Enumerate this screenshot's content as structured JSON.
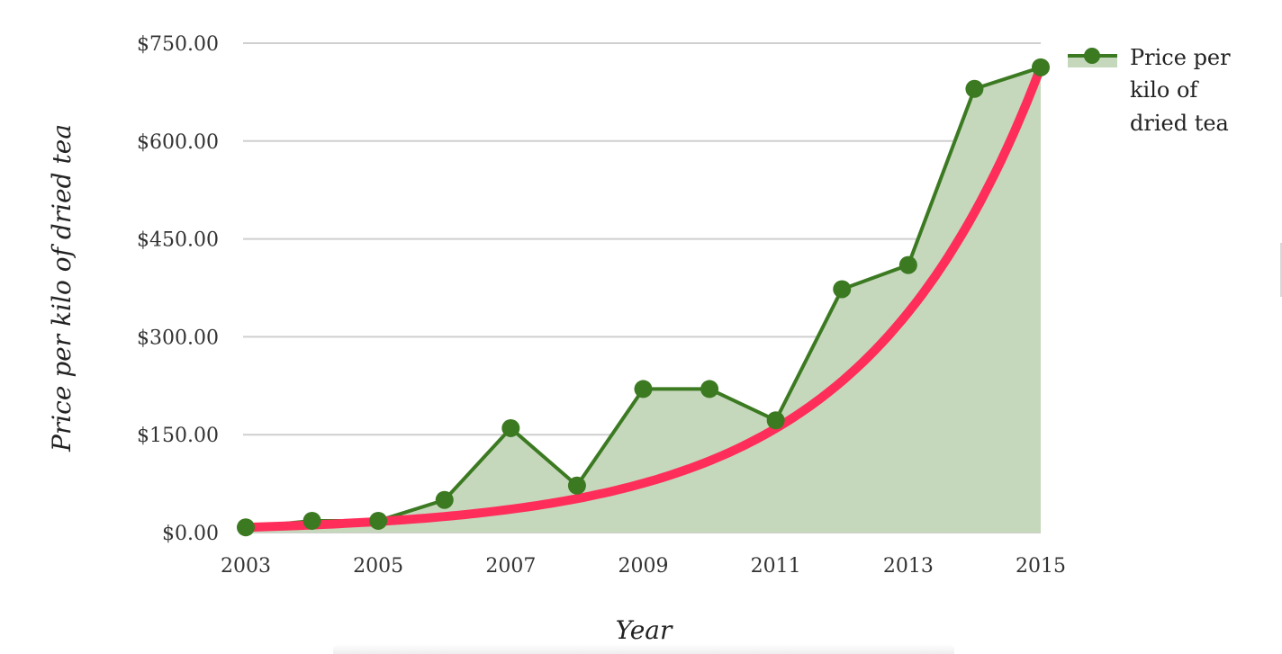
{
  "chart_data": {
    "type": "line",
    "xlabel": "Year",
    "ylabel": "Price per kilo of dried tea",
    "xlim": [
      2003,
      2015
    ],
    "ylim": [
      0,
      750
    ],
    "x_ticks": [
      "2003",
      "2005",
      "2007",
      "2009",
      "2011",
      "2013",
      "2015"
    ],
    "x_tick_values": [
      2003,
      2005,
      2007,
      2009,
      2011,
      2013,
      2015
    ],
    "y_ticks": [
      "$0.00",
      "$150.00",
      "$300.00",
      "$450.00",
      "$600.00",
      "$750.00"
    ],
    "y_tick_values": [
      0,
      150,
      300,
      450,
      600,
      750
    ],
    "grid": true,
    "legend_position": "top-right",
    "series": [
      {
        "name": "Price per kilo of dried tea",
        "style": "area-line-markers",
        "color": "#3c7a22",
        "fill_color": "#c5d8bc",
        "x": [
          2003,
          2004,
          2005,
          2006,
          2007,
          2008,
          2009,
          2010,
          2011,
          2012,
          2013,
          2014,
          2015
        ],
        "values": [
          8,
          18,
          18,
          50,
          160,
          72,
          220,
          220,
          172,
          373,
          410,
          680,
          713
        ]
      }
    ],
    "trendline": {
      "type": "exponential",
      "color": "#ff2d5a",
      "x": [
        2003,
        2015
      ],
      "values": [
        8,
        713
      ]
    }
  },
  "legend": {
    "lines": [
      "Price per",
      "kilo of",
      "dried tea"
    ]
  }
}
